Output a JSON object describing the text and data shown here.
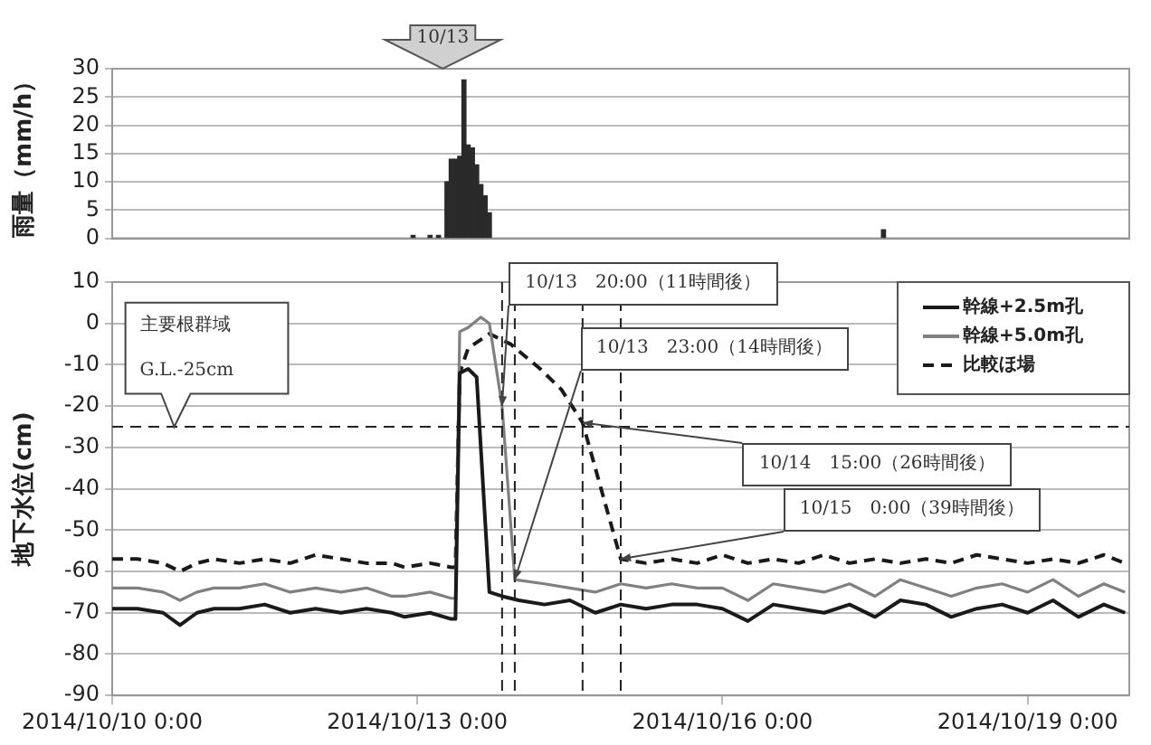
{
  "chart_data": [
    {
      "type": "bar",
      "ylabel": "雨量（mm/h）",
      "color": "#2a2a2a",
      "grid": "y",
      "tick_labels": "y",
      "x": [
        "2014-10-12T23:00",
        "2014-10-13T03:00",
        "2014-10-13T05:00",
        "2014-10-13T07:00",
        "2014-10-13T08:00",
        "2014-10-13T09:00",
        "2014-10-13T10:00",
        "2014-10-13T11:00",
        "2014-10-13T12:00",
        "2014-10-13T13:00",
        "2014-10-13T14:00",
        "2014-10-13T15:00",
        "2014-10-13T16:00",
        "2014-10-13T17:00",
        "2014-10-17T14:00"
      ],
      "values": [
        0.5,
        0.5,
        0.5,
        10,
        14,
        14,
        14.5,
        28,
        16.5,
        16,
        13,
        9.5,
        7.5,
        4.5,
        1.5
      ],
      "xlim": [
        "2014-10-10T00:00",
        "2014-10-20T00:00"
      ],
      "ylim": [
        0,
        30
      ],
      "yticks": [
        0,
        5,
        10,
        15,
        20,
        25,
        30
      ],
      "annotations": [
        "10/13"
      ]
    },
    {
      "type": "line",
      "ylabel": "地下水位(cm)",
      "grid": "y",
      "legend": "top right",
      "xlim": [
        "2014-10-10T00:00",
        "2014-10-20T00:00"
      ],
      "xticks": [
        {
          "value": "2014-10-10T00:00",
          "label": "2014/10/10 0:00"
        },
        {
          "value": "2014-10-13T00:00",
          "label": "2014/10/13 0:00"
        },
        {
          "value": "2014-10-16T00:00",
          "label": "2014/10/16 0:00"
        },
        {
          "value": "2014-10-19T00:00",
          "label": "2014/10/19 0:00"
        }
      ],
      "ylim": [
        -90,
        10
      ],
      "yticks": [
        -90,
        -80,
        -70,
        -60,
        -50,
        -40,
        -30,
        -20,
        -10,
        0,
        10
      ],
      "series": [
        {
          "name": "幹線+2.5m孔",
          "color": "#1a1a1a",
          "line_style": "solid",
          "x": [
            "2014-10-10T00:00",
            "2014-10-10T06:00",
            "2014-10-10T12:00",
            "2014-10-10T16:00",
            "2014-10-10T20:00",
            "2014-10-11T00:00",
            "2014-10-11T06:00",
            "2014-10-11T12:00",
            "2014-10-11T18:00",
            "2014-10-12T00:00",
            "2014-10-12T06:00",
            "2014-10-12T12:00",
            "2014-10-12T18:00",
            "2014-10-12T21:00",
            "2014-10-13T03:00",
            "2014-10-13T08:00",
            "2014-10-13T09:00",
            "2014-10-13T10:00",
            "2014-10-13T12:00",
            "2014-10-13T14:00",
            "2014-10-13T17:00",
            "2014-10-13T20:00",
            "2014-10-14T00:00",
            "2014-10-14T06:00",
            "2014-10-14T12:00",
            "2014-10-14T18:00",
            "2014-10-15T00:00",
            "2014-10-15T06:00",
            "2014-10-15T12:00",
            "2014-10-15T18:00",
            "2014-10-16T00:00",
            "2014-10-16T06:00",
            "2014-10-16T12:00",
            "2014-10-16T18:00",
            "2014-10-17T00:00",
            "2014-10-17T06:00",
            "2014-10-17T12:00",
            "2014-10-17T18:00",
            "2014-10-18T00:00",
            "2014-10-18T06:00",
            "2014-10-18T12:00",
            "2014-10-18T18:00",
            "2014-10-19T00:00",
            "2014-10-19T06:00",
            "2014-10-19T12:00",
            "2014-10-19T18:00",
            "2014-10-19T23:00"
          ],
          "values": [
            -69,
            -69,
            -70,
            -73,
            -70,
            -69,
            -69,
            -68,
            -70,
            -69,
            -70,
            -69,
            -70,
            -71,
            -70,
            -71.5,
            -71.5,
            -12,
            -11,
            -13,
            -65,
            -66,
            -67,
            -68,
            -67,
            -70,
            -68,
            -69,
            -68,
            -68,
            -69,
            -72,
            -68,
            -69,
            -70,
            -68,
            -71,
            -67,
            -68,
            -71,
            -69,
            -68,
            -70,
            -67,
            -71,
            -68,
            -70
          ]
        },
        {
          "name": "幹線+5.0m孔",
          "color": "#808080",
          "line_style": "solid",
          "x": [
            "2014-10-10T00:00",
            "2014-10-10T06:00",
            "2014-10-10T12:00",
            "2014-10-10T16:00",
            "2014-10-10T20:00",
            "2014-10-11T00:00",
            "2014-10-11T06:00",
            "2014-10-11T12:00",
            "2014-10-11T18:00",
            "2014-10-12T00:00",
            "2014-10-12T06:00",
            "2014-10-12T12:00",
            "2014-10-12T18:00",
            "2014-10-12T21:00",
            "2014-10-13T03:00",
            "2014-10-13T08:00",
            "2014-10-13T09:00",
            "2014-10-13T10:00",
            "2014-10-13T12:00",
            "2014-10-13T15:00",
            "2014-10-13T17:00",
            "2014-10-13T20:00",
            "2014-10-13T23:00",
            "2014-10-14T06:00",
            "2014-10-14T12:00",
            "2014-10-14T18:00",
            "2014-10-15T00:00",
            "2014-10-15T06:00",
            "2014-10-15T12:00",
            "2014-10-15T18:00",
            "2014-10-16T00:00",
            "2014-10-16T06:00",
            "2014-10-16T12:00",
            "2014-10-16T18:00",
            "2014-10-17T00:00",
            "2014-10-17T06:00",
            "2014-10-17T12:00",
            "2014-10-17T18:00",
            "2014-10-18T00:00",
            "2014-10-18T06:00",
            "2014-10-18T12:00",
            "2014-10-18T18:00",
            "2014-10-19T00:00",
            "2014-10-19T06:00",
            "2014-10-19T12:00",
            "2014-10-19T18:00",
            "2014-10-19T23:00"
          ],
          "values": [
            -64,
            -64,
            -65,
            -67,
            -65,
            -64,
            -64,
            -63,
            -65,
            -64,
            -65,
            -64,
            -66,
            -66,
            -65,
            -66.5,
            -66.5,
            -2,
            -1,
            1.5,
            0,
            -20,
            -62,
            -63,
            -64,
            -65,
            -63,
            -64,
            -63,
            -64,
            -64,
            -67,
            -63,
            -64,
            -65,
            -63,
            -66,
            -62,
            -64,
            -66,
            -64,
            -63,
            -65,
            -62,
            -66,
            -63,
            -65
          ]
        },
        {
          "name": "比較ほ場",
          "color": "#1a1a1a",
          "line_style": "dashed",
          "x": [
            "2014-10-10T00:00",
            "2014-10-10T06:00",
            "2014-10-10T12:00",
            "2014-10-10T16:00",
            "2014-10-10T20:00",
            "2014-10-11T00:00",
            "2014-10-11T06:00",
            "2014-10-11T12:00",
            "2014-10-11T18:00",
            "2014-10-12T00:00",
            "2014-10-12T06:00",
            "2014-10-12T12:00",
            "2014-10-12T18:00",
            "2014-10-12T21:00",
            "2014-10-13T03:00",
            "2014-10-13T08:00",
            "2014-10-13T09:00",
            "2014-10-13T10:00",
            "2014-10-13T12:00",
            "2014-10-13T17:00",
            "2014-10-13T22:00",
            "2014-10-14T05:00",
            "2014-10-14T10:00",
            "2014-10-14T15:00",
            "2014-10-15T00:00",
            "2014-10-15T06:00",
            "2014-10-15T12:00",
            "2014-10-15T18:00",
            "2014-10-16T00:00",
            "2014-10-16T06:00",
            "2014-10-16T12:00",
            "2014-10-16T18:00",
            "2014-10-17T00:00",
            "2014-10-17T06:00",
            "2014-10-17T12:00",
            "2014-10-17T18:00",
            "2014-10-18T00:00",
            "2014-10-18T06:00",
            "2014-10-18T12:00",
            "2014-10-18T18:00",
            "2014-10-19T00:00",
            "2014-10-19T06:00",
            "2014-10-19T12:00",
            "2014-10-19T18:00",
            "2014-10-19T23:00"
          ],
          "values": [
            -57,
            -57,
            -58,
            -60,
            -58,
            -57,
            -58,
            -57,
            -58,
            -56,
            -57,
            -58,
            -58,
            -59,
            -58,
            -59,
            -59,
            -12,
            -6,
            -2.5,
            -5,
            -11,
            -16,
            -24,
            -57,
            -58,
            -57,
            -58,
            -56,
            -58,
            -57,
            -58,
            -56,
            -58,
            -57,
            -58,
            -57,
            -58,
            -56,
            -57,
            -58,
            -57,
            -58,
            -56,
            -58
          ]
        }
      ],
      "ref_lines": [
        {
          "axis": "y",
          "value": -25,
          "label": "G.L.-25cm"
        },
        {
          "axis": "x",
          "value": "2014-10-13T20:00"
        },
        {
          "axis": "x",
          "value": "2014-10-13T23:00"
        },
        {
          "axis": "x",
          "value": "2014-10-14T15:00"
        },
        {
          "axis": "x",
          "value": "2014-10-15T00:00"
        }
      ],
      "annotations": [
        "主要根群域",
        {
          "text": "10/13　20:00（11時間後）",
          "x": "2014-10-13T20:00",
          "y": -20
        },
        {
          "text": "10/13　23:00（14時間後）",
          "x": "2014-10-13T23:00",
          "y": -62
        },
        {
          "text": "10/14　15:00（26時間後）",
          "x": "2014-10-14T15:00",
          "y": -24
        },
        {
          "text": "10/15　0:00（39時間後）",
          "x": "2014-10-15T00:00",
          "y": -57
        }
      ]
    }
  ]
}
